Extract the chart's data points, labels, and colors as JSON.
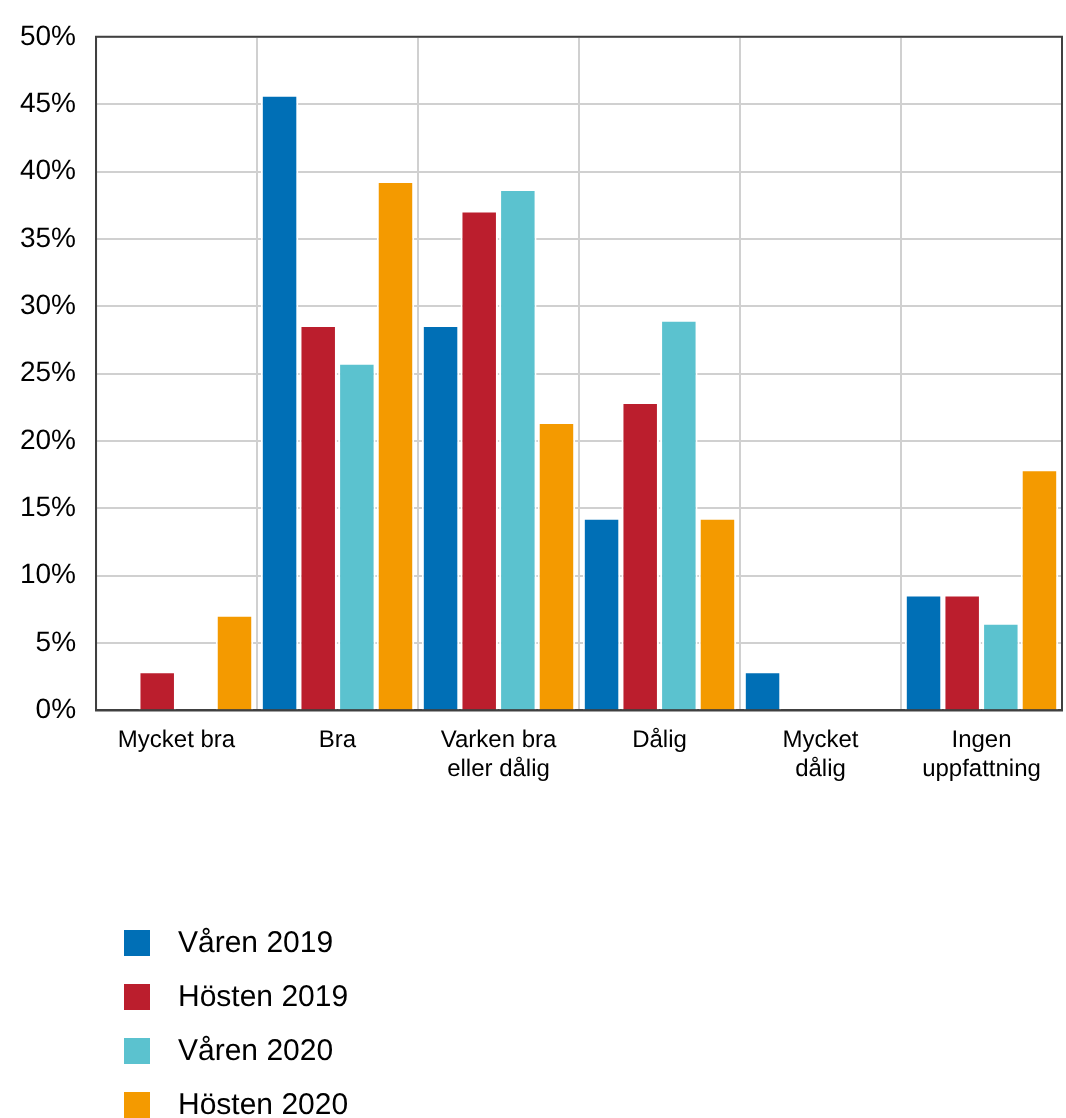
{
  "chart_data": {
    "type": "bar",
    "categories": [
      "Mycket bra",
      "Bra",
      "Varken bra\neller dålig",
      "Dålig",
      "Mycket\ndålig",
      "Ingen\nuppfattning"
    ],
    "series": [
      {
        "name": "Våren 2019",
        "color": "#006fb6",
        "values": [
          0,
          45.7,
          28.6,
          14.3,
          2.9,
          8.6
        ]
      },
      {
        "name": "Hösten 2019",
        "color": "#bb1e2d",
        "values": [
          2.9,
          28.6,
          37.1,
          22.9,
          0,
          8.6
        ]
      },
      {
        "name": "Våren 2020",
        "color": "#5bc2cf",
        "values": [
          0,
          25.8,
          38.7,
          29.0,
          0,
          6.5
        ]
      },
      {
        "name": "Hösten 2020",
        "color": "#f49a00",
        "values": [
          7.1,
          39.3,
          21.4,
          14.3,
          0,
          17.9
        ]
      }
    ],
    "ylim": [
      0,
      50
    ],
    "yticks": [
      {
        "value": 0,
        "label": "0%"
      },
      {
        "value": 5,
        "label": "5%"
      },
      {
        "value": 10,
        "label": "10%"
      },
      {
        "value": 15,
        "label": "15%"
      },
      {
        "value": 20,
        "label": "20%"
      },
      {
        "value": 25,
        "label": "25%"
      },
      {
        "value": 30,
        "label": "30%"
      },
      {
        "value": 35,
        "label": "35%"
      },
      {
        "value": 40,
        "label": "40%"
      },
      {
        "value": 45,
        "label": "45%"
      },
      {
        "value": 50,
        "label": "50%"
      }
    ],
    "grid": true,
    "legend": "bottom left"
  }
}
